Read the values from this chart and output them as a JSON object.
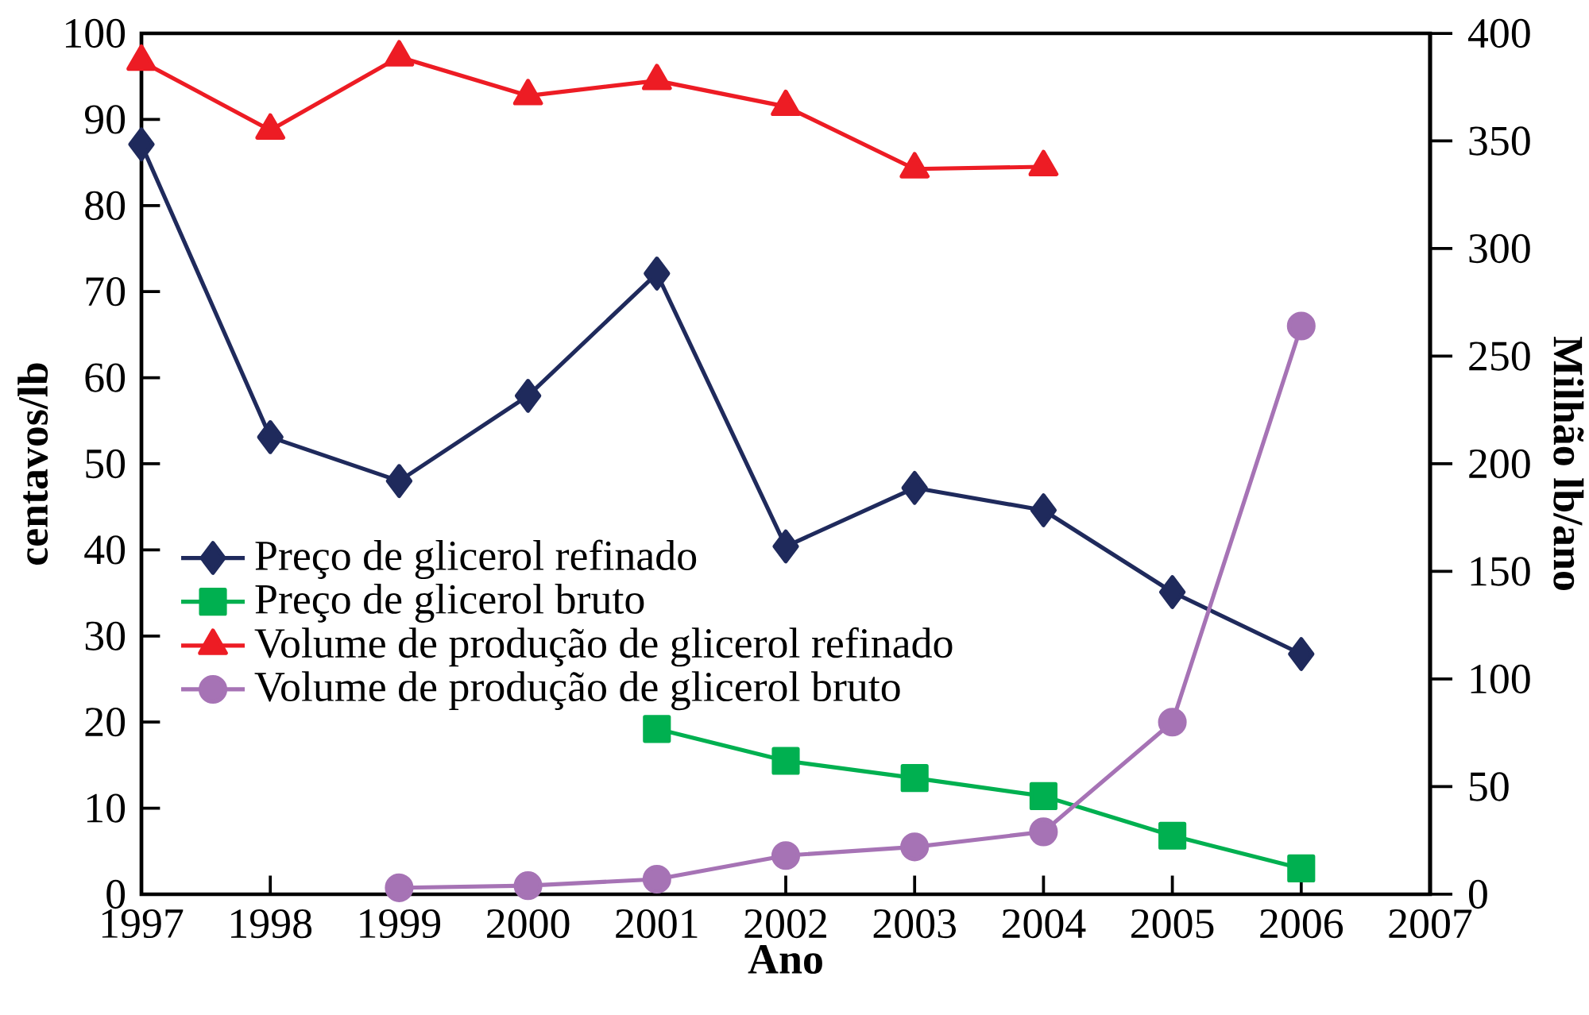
{
  "chart_data": {
    "type": "line",
    "xlabel": "Ano",
    "ylabel": "centavos/lb",
    "y2label": "Milhão lb/ano",
    "x": [
      1997,
      1998,
      1999,
      2000,
      2001,
      2002,
      2003,
      2004,
      2005,
      2006
    ],
    "series": [
      {
        "name": "Preço de glicerol refinado",
        "color": "#1f2a5c",
        "marker": "diamond",
        "values": [
          87.1,
          53.1,
          48.0,
          57.9,
          72.1,
          40.4,
          47.2,
          44.6,
          35.1,
          27.9
        ]
      },
      {
        "name": "Preço de glicerol bruto",
        "color": "#00b050",
        "marker": "square",
        "values": [
          null,
          null,
          null,
          null,
          19.2,
          15.5,
          13.5,
          11.4,
          6.8,
          3.0
        ]
      },
      {
        "name": "Volume de produção de glicerol refinado",
        "color": "#ed1c24",
        "marker": "triangle",
        "axis": "y2",
        "values": [
          387,
          355,
          389,
          371,
          378,
          366,
          337,
          338,
          null,
          null
        ]
      },
      {
        "name": "Volume de produção de glicerol bruto",
        "color": "#a673b5",
        "marker": "circle",
        "axis": "y2",
        "values": [
          null,
          null,
          3,
          4,
          7,
          18,
          22,
          29,
          80,
          264
        ]
      }
    ],
    "xlim": [
      1997,
      2007
    ],
    "xticks": [
      1997,
      1998,
      1999,
      2000,
      2001,
      2002,
      2003,
      2004,
      2005,
      2006,
      2007
    ],
    "ylim": [
      0,
      100
    ],
    "yticks": [
      0,
      10,
      20,
      30,
      40,
      50,
      60,
      70,
      80,
      90,
      100
    ],
    "y2lim": [
      0,
      400
    ],
    "y2ticks": [
      0,
      50,
      100,
      150,
      200,
      250,
      300,
      350,
      400
    ],
    "legend": "left"
  }
}
